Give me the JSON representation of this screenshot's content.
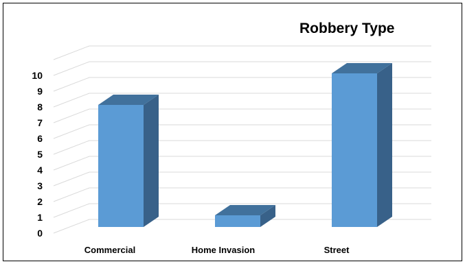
{
  "chart_data": {
    "type": "bar",
    "title": "Robbery Type",
    "categories": [
      "Commercial",
      "Home Invasion",
      "Street"
    ],
    "values": [
      8,
      1,
      10
    ],
    "ylim": [
      0,
      10
    ],
    "yticks": [
      0,
      1,
      2,
      3,
      4,
      5,
      6,
      7,
      8,
      9,
      10
    ],
    "grid": true,
    "legend": "none",
    "style": "3d-column",
    "colors": {
      "front": "#5b9bd5",
      "top": "#41719c",
      "side": "#386189",
      "grid": "#d9d9d9"
    }
  }
}
